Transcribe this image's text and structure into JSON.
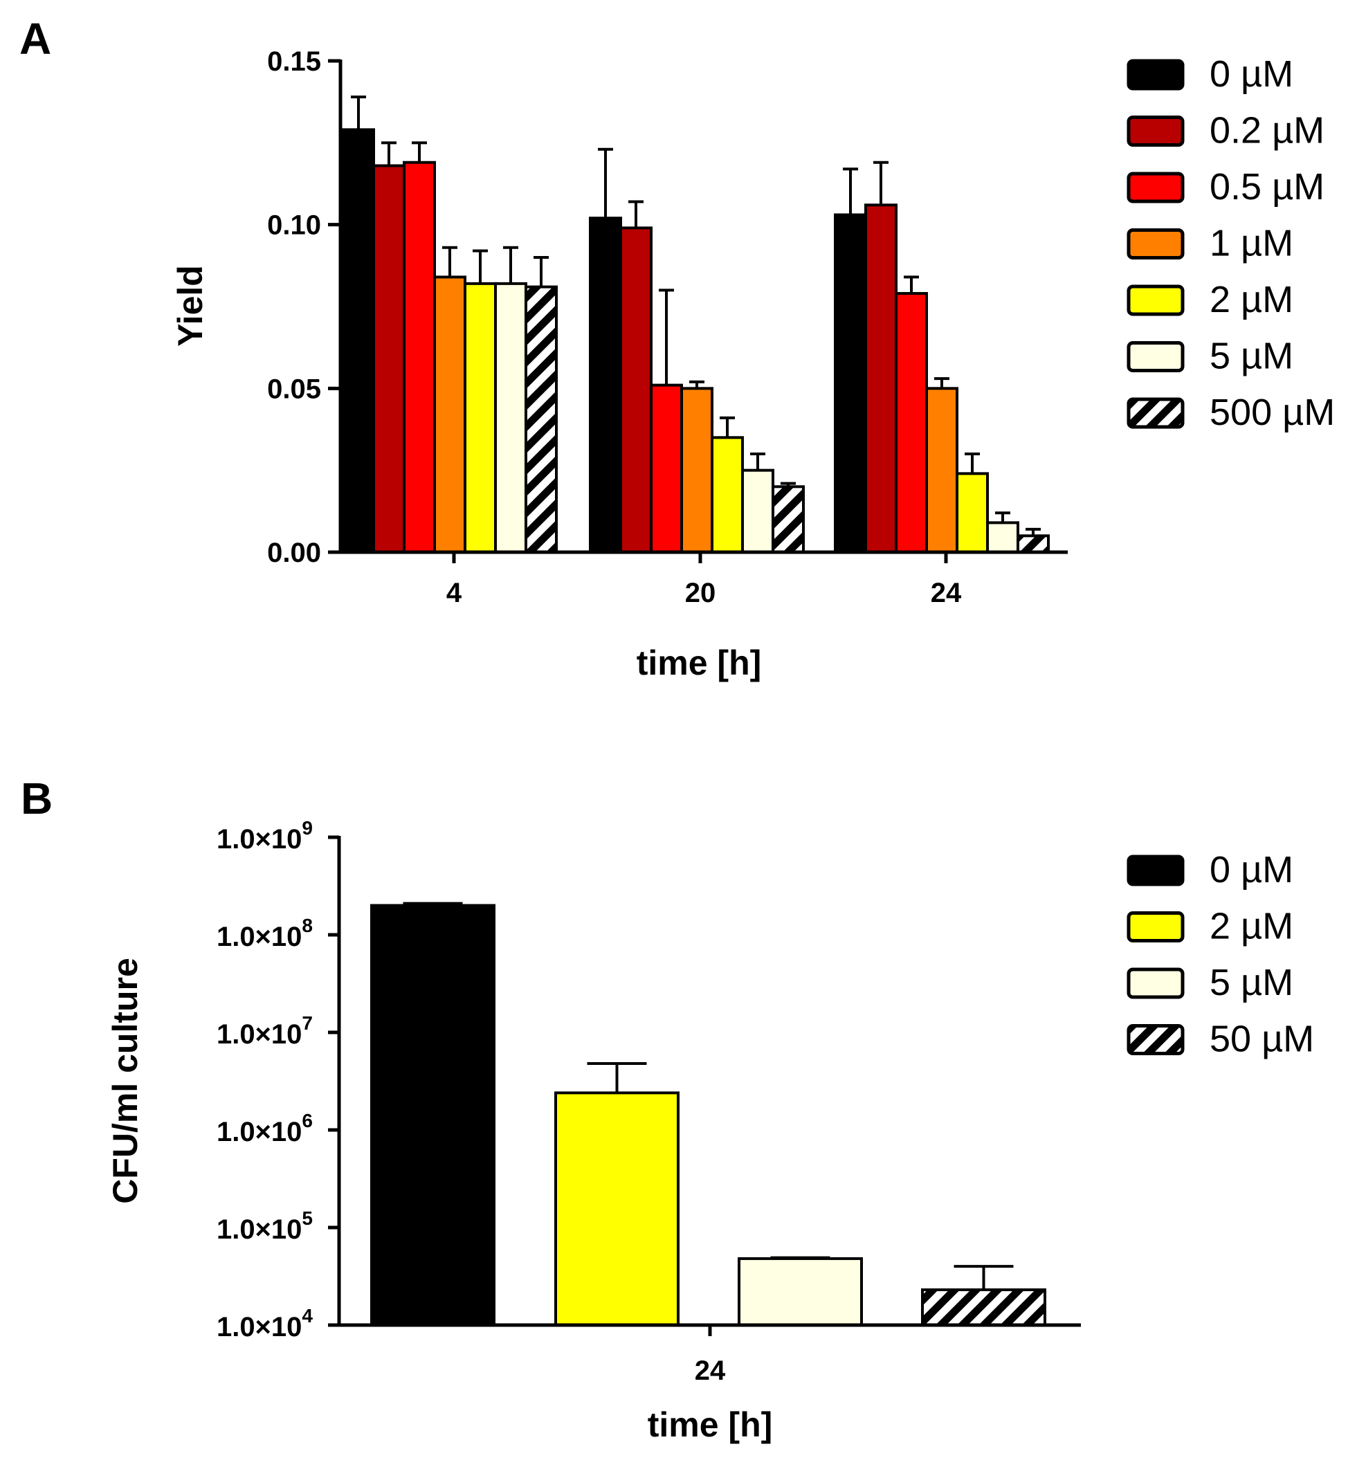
{
  "panel_a_label": "A",
  "panel_b_label": "B",
  "colors": {
    "c0": "#000000",
    "c02": "#b80000",
    "c05": "#ff0000",
    "c1": "#ff8000",
    "c2": "#ffff00",
    "c5": "#ffffe4",
    "hatch": "#000000"
  },
  "chart_data": [
    {
      "panel": "A",
      "type": "bar",
      "xlabel": "time [h]",
      "ylabel": "Yield",
      "ylim": [
        0,
        0.15
      ],
      "yticks": [
        0,
        0.05,
        0.1,
        0.15
      ],
      "ytick_labels": [
        "0.00",
        "0.05",
        "0.10",
        "0.15"
      ],
      "categories": [
        "4",
        "20",
        "24"
      ],
      "series": [
        {
          "name": "0 µM",
          "fill": "#000000",
          "pattern": "solid",
          "values": [
            0.129,
            0.102,
            0.103
          ],
          "errors": [
            0.01,
            0.021,
            0.014
          ]
        },
        {
          "name": "0.2 µM",
          "fill": "#b80000",
          "pattern": "solid",
          "values": [
            0.118,
            0.099,
            0.106
          ],
          "errors": [
            0.007,
            0.008,
            0.013
          ]
        },
        {
          "name": "0.5 µM",
          "fill": "#ff0000",
          "pattern": "solid",
          "values": [
            0.119,
            0.051,
            0.079
          ],
          "errors": [
            0.006,
            0.029,
            0.005
          ]
        },
        {
          "name": "1 µM",
          "fill": "#ff8000",
          "pattern": "solid",
          "values": [
            0.084,
            0.05,
            0.05
          ],
          "errors": [
            0.009,
            0.002,
            0.003
          ]
        },
        {
          "name": "2 µM",
          "fill": "#ffff00",
          "pattern": "solid",
          "values": [
            0.082,
            0.035,
            0.024
          ],
          "errors": [
            0.01,
            0.006,
            0.006
          ]
        },
        {
          "name": "5 µM",
          "fill": "#ffffe4",
          "pattern": "solid",
          "values": [
            0.082,
            0.025,
            0.009
          ],
          "errors": [
            0.011,
            0.005,
            0.003
          ]
        },
        {
          "name": "500 µM",
          "fill": "#ffffff",
          "pattern": "hatch",
          "values": [
            0.081,
            0.02,
            0.005
          ],
          "errors": [
            0.009,
            0.001,
            0.002
          ]
        }
      ]
    },
    {
      "panel": "B",
      "type": "bar",
      "xlabel": "time [h]",
      "ylabel": "CFU/ml culture",
      "yscale": "log",
      "ylim": [
        10000,
        1000000000
      ],
      "yticks": [
        10000,
        100000,
        1000000,
        10000000,
        100000000,
        1000000000
      ],
      "ytick_labels": [
        {
          "mantissa": "1.0×10",
          "exp": "4"
        },
        {
          "mantissa": "1.0×10",
          "exp": "5"
        },
        {
          "mantissa": "1.0×10",
          "exp": "6"
        },
        {
          "mantissa": "1.0×10",
          "exp": "7"
        },
        {
          "mantissa": "1.0×10",
          "exp": "8"
        },
        {
          "mantissa": "1.0×10",
          "exp": "9"
        }
      ],
      "categories": [
        "24"
      ],
      "series": [
        {
          "name": "0 µM",
          "fill": "#000000",
          "pattern": "solid",
          "values": [
            200000000
          ],
          "error_top": [
            210000000
          ]
        },
        {
          "name": "2 µM",
          "fill": "#ffff00",
          "pattern": "solid",
          "values": [
            2400000
          ],
          "error_top": [
            4800000
          ]
        },
        {
          "name": "5 µM",
          "fill": "#ffffe4",
          "pattern": "solid",
          "values": [
            48000
          ],
          "error_top": [
            49000
          ]
        },
        {
          "name": "50 µM",
          "fill": "#ffffff",
          "pattern": "hatch",
          "values": [
            23000
          ],
          "error_top": [
            40000
          ]
        }
      ]
    }
  ]
}
